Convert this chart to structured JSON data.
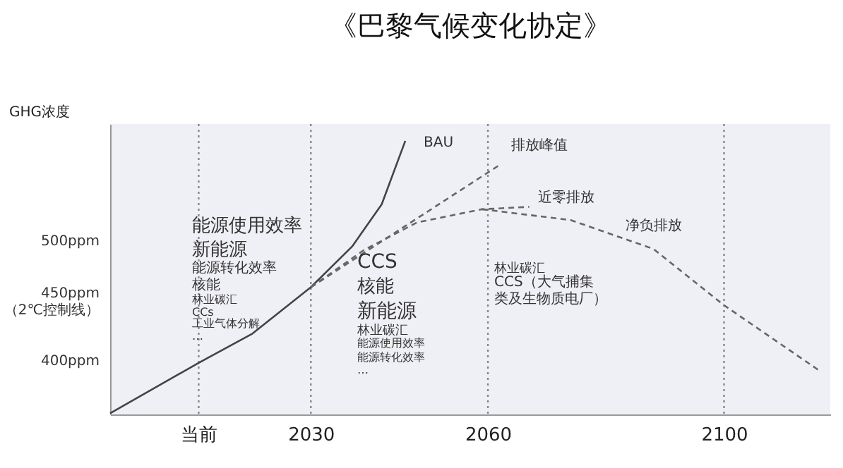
{
  "chart_data": {
    "type": "line",
    "title": "《巴黎气候变化协定》",
    "ylabel": "GHG浓度",
    "xlim": [
      1996,
      2118
    ],
    "xticks": [
      {
        "value": 2011,
        "label": "当前"
      },
      2030,
      2060,
      2100
    ],
    "ylim": [
      355,
      597
    ],
    "yticks": [
      {
        "value": 400,
        "label": "400ppm"
      },
      {
        "value": 450,
        "label": "450ppm\n（2℃控制线）"
      },
      {
        "value": 500,
        "label": "500ppm"
      }
    ],
    "series": [
      {
        "name": "BAU",
        "color": "#444444",
        "line_style": "solid",
        "x": [
          1996,
          2011,
          2020,
          2030,
          2037,
          2042,
          2046
        ],
        "values": [
          356,
          398,
          422,
          461,
          495,
          530,
          583
        ]
      },
      {
        "name": "排放峰值",
        "color": "#666666",
        "line_style": "dashed",
        "x": [
          2030,
          2046,
          2062
        ],
        "values": [
          461,
          512,
          563
        ]
      },
      {
        "name": "近零排放",
        "color": "#666666",
        "line_style": "dashed",
        "x": [
          2030,
          2039,
          2048,
          2059,
          2067
        ],
        "values": [
          461,
          492,
          515,
          526,
          528
        ]
      },
      {
        "name": "净负排放",
        "color": "#666666",
        "line_style": "dashed",
        "x": [
          2059,
          2074,
          2088,
          2100,
          2116
        ],
        "values": [
          526,
          517,
          493,
          446,
          392
        ]
      }
    ],
    "ref_lines": [
      {
        "axis": "x",
        "value": 2011,
        "line_style": "dotted",
        "color": "#888888"
      },
      {
        "axis": "x",
        "value": 2030,
        "line_style": "dotted",
        "color": "#888888"
      },
      {
        "axis": "x",
        "value": 2060,
        "line_style": "dotted",
        "color": "#888888"
      },
      {
        "axis": "x",
        "value": 2100,
        "line_style": "dotted",
        "color": "#888888"
      }
    ],
    "annotations": [
      "能源使用效率",
      "新能源",
      "能源转化效率",
      "核能",
      "林业碳汇",
      "CCs",
      "工业气体分解",
      "…",
      "CCS",
      "核能",
      "新能源",
      "林业碳汇",
      "能源使用效率",
      "能源转化效率",
      "…",
      "林业碳汇",
      "CCS（大气捕集",
      "类及生物质电厂）"
    ],
    "grid": false
  }
}
